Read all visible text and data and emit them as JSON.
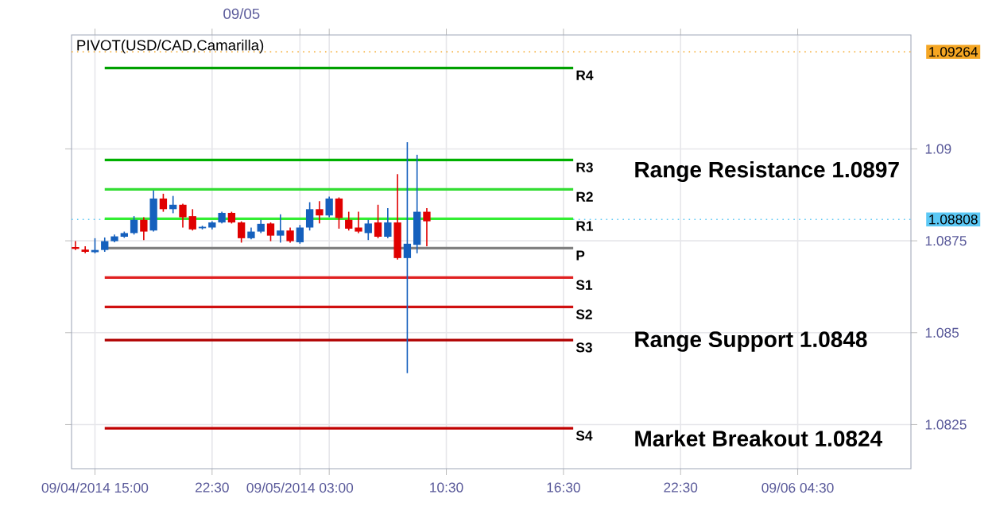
{
  "chart_data": {
    "type": "candlestick",
    "title": "PIVOT(USD/CAD,Camarilla)",
    "x": [
      "2014-09-04T15:30",
      "2014-09-04T16:00",
      "2014-09-04T16:30",
      "2014-09-04T17:00",
      "2014-09-04T17:30",
      "2014-09-04T18:00",
      "2014-09-04T18:30",
      "2014-09-04T19:00",
      "2014-09-04T19:30",
      "2014-09-04T20:00",
      "2014-09-04T20:30",
      "2014-09-04T21:00",
      "2014-09-04T21:30",
      "2014-09-04T22:00",
      "2014-09-04T22:30",
      "2014-09-04T23:00",
      "2014-09-04T23:30",
      "2014-09-05T00:00",
      "2014-09-05T00:30",
      "2014-09-05T01:00",
      "2014-09-05T01:30",
      "2014-09-05T02:00",
      "2014-09-05T02:30",
      "2014-09-05T03:00",
      "2014-09-05T03:30",
      "2014-09-05T04:00",
      "2014-09-05T04:30",
      "2014-09-05T05:00",
      "2014-09-05T05:30",
      "2014-09-05T06:00",
      "2014-09-05T06:30",
      "2014-09-05T07:00",
      "2014-09-05T07:30",
      "2014-09-05T08:00",
      "2014-09-05T08:30",
      "2014-09-05T09:00",
      "2014-09-05T09:30"
    ],
    "ohlc": [
      [
        1.08733,
        1.08749,
        1.08725,
        1.08728
      ],
      [
        1.08726,
        1.08735,
        1.08716,
        1.0872
      ],
      [
        1.08719,
        1.08757,
        1.08716,
        1.08725
      ],
      [
        1.08725,
        1.08759,
        1.0872,
        1.08749
      ],
      [
        1.08749,
        1.08767,
        1.08746,
        1.08762
      ],
      [
        1.08761,
        1.08775,
        1.08758,
        1.08771
      ],
      [
        1.08771,
        1.08817,
        1.08767,
        1.08807
      ],
      [
        1.08807,
        1.08814,
        1.08752,
        1.08775
      ],
      [
        1.08778,
        1.08887,
        1.08775,
        1.08865
      ],
      [
        1.08865,
        1.08878,
        1.08829,
        1.08836
      ],
      [
        1.08836,
        1.08872,
        1.08825,
        1.08848
      ],
      [
        1.08848,
        1.08851,
        1.08786,
        1.08814
      ],
      [
        1.08817,
        1.08836,
        1.08778,
        1.08781
      ],
      [
        1.08784,
        1.08791,
        1.08781,
        1.08788
      ],
      [
        1.08786,
        1.08803,
        1.08781,
        1.088
      ],
      [
        1.088,
        1.08829,
        1.08797,
        1.08826
      ],
      [
        1.08826,
        1.08829,
        1.08797,
        1.088
      ],
      [
        1.088,
        1.08803,
        1.08745,
        1.08757
      ],
      [
        1.08757,
        1.08786,
        1.08754,
        1.08775
      ],
      [
        1.08775,
        1.08807,
        1.08771,
        1.08796
      ],
      [
        1.08797,
        1.088,
        1.08749,
        1.08764
      ],
      [
        1.08764,
        1.08822,
        1.08745,
        1.08778
      ],
      [
        1.08778,
        1.08786,
        1.08745,
        1.08749
      ],
      [
        1.08746,
        1.08793,
        1.08742,
        1.08786
      ],
      [
        1.08786,
        1.08855,
        1.08778,
        1.08836
      ],
      [
        1.08836,
        1.08858,
        1.08797,
        1.08819
      ],
      [
        1.08819,
        1.0887,
        1.08814,
        1.08865
      ],
      [
        1.08865,
        1.08868,
        1.08783,
        1.08812
      ],
      [
        1.08807,
        1.08829,
        1.08778,
        1.08783
      ],
      [
        1.08786,
        1.08829,
        1.08771,
        1.08775
      ],
      [
        1.08771,
        1.08807,
        1.08752,
        1.08797
      ],
      [
        1.088,
        1.08848,
        1.08757,
        1.08761
      ],
      [
        1.08761,
        1.08839,
        1.08757,
        1.088
      ],
      [
        1.088,
        1.08931,
        1.08699,
        1.08703
      ],
      [
        1.08703,
        1.09018,
        1.0839,
        1.08742
      ],
      [
        1.08739,
        1.08984,
        1.08716,
        1.08829
      ],
      [
        1.08829,
        1.08839,
        1.08735,
        1.08803
      ]
    ],
    "colors": [
      "#e00000",
      "#e00000",
      "#1560bd",
      "#1560bd",
      "#1560bd",
      "#1560bd",
      "#1560bd",
      "#e00000",
      "#1560bd",
      "#e00000",
      "#1560bd",
      "#e00000",
      "#e00000",
      "#1560bd",
      "#1560bd",
      "#1560bd",
      "#e00000",
      "#e00000",
      "#1560bd",
      "#1560bd",
      "#e00000",
      "#1560bd",
      "#e00000",
      "#1560bd",
      "#1560bd",
      "#e00000",
      "#1560bd",
      "#e00000",
      "#e00000",
      "#e00000",
      "#1560bd",
      "#e00000",
      "#1560bd",
      "#e00000",
      "#1560bd",
      "#1560bd",
      "#e00000"
    ],
    "series": [
      {
        "type": "line",
        "name": "R4",
        "color": "#00a000",
        "x": [
          "2014-09-04T17:00",
          "2014-09-05T17:00"
        ],
        "values": [
          1.0922,
          1.0922
        ]
      },
      {
        "type": "line",
        "name": "R3",
        "color": "#00b000",
        "x": [
          "2014-09-04T17:00",
          "2014-09-05T17:00"
        ],
        "values": [
          1.0897,
          1.0897
        ]
      },
      {
        "type": "line",
        "name": "R2",
        "color": "#33dd33",
        "x": [
          "2014-09-04T17:00",
          "2014-09-05T17:00"
        ],
        "values": [
          1.0889,
          1.0889
        ]
      },
      {
        "type": "line",
        "name": "R1",
        "color": "#33ee33",
        "x": [
          "2014-09-04T17:00",
          "2014-09-05T17:00"
        ],
        "values": [
          1.0881,
          1.0881
        ]
      },
      {
        "type": "line",
        "name": "P",
        "color": "#808080",
        "x": [
          "2014-09-04T17:00",
          "2014-09-05T17:00"
        ],
        "values": [
          1.0873,
          1.0873
        ]
      },
      {
        "type": "line",
        "name": "S1",
        "color": "#e02020",
        "x": [
          "2014-09-04T17:00",
          "2014-09-05T17:00"
        ],
        "values": [
          1.0865,
          1.0865
        ]
      },
      {
        "type": "line",
        "name": "S2",
        "color": "#d01010",
        "x": [
          "2014-09-04T17:00",
          "2014-09-05T17:00"
        ],
        "values": [
          1.0857,
          1.0857
        ]
      },
      {
        "type": "line",
        "name": "S3",
        "color": "#b00000",
        "x": [
          "2014-09-04T17:00",
          "2014-09-05T17:00"
        ],
        "values": [
          1.0848,
          1.0848
        ]
      },
      {
        "type": "line",
        "name": "S4",
        "color": "#c00000",
        "x": [
          "2014-09-04T17:00",
          "2014-09-05T17:00"
        ],
        "values": [
          1.0824,
          1.0824
        ]
      }
    ],
    "annotations": [
      "Range Resistance 1.0897",
      "Range Support 1.0848",
      "Market Breakout 1.0824",
      "09/05"
    ],
    "ref_lines": [
      {
        "axis": "y",
        "value": 1.09264,
        "label": "1.09264",
        "color": "#f5a623",
        "line_style": "dotted"
      },
      {
        "axis": "y",
        "value": 1.08808,
        "label": "1.08808",
        "color": "#5bc8f5",
        "line_style": "dotted"
      }
    ],
    "xlim": [
      "2014-09-04T15:18",
      "2014-09-06T10:18"
    ],
    "xticks": [
      {
        "value": "2014-09-04T16:30",
        "label": "09/04/2014 15:00"
      },
      {
        "value": "2014-09-04T22:30",
        "label": "22:30"
      },
      {
        "value": "2014-09-05T03:00",
        "label": "09/05/2014 03:00"
      },
      {
        "value": "2014-09-05T04:30",
        "label": null
      },
      {
        "value": "2014-09-05T10:30",
        "label": "10:30"
      },
      {
        "value": "2014-09-05T16:30",
        "label": "16:30"
      },
      {
        "value": "2014-09-05T22:30",
        "label": "22:30"
      },
      {
        "value": "2014-09-06T04:30",
        "label": "09/06 04:30"
      }
    ],
    "ylim": [
      1.0813,
      1.0931
    ],
    "yticks": [
      1.0825,
      1.085,
      1.0875,
      1.09
    ],
    "grid": true
  }
}
